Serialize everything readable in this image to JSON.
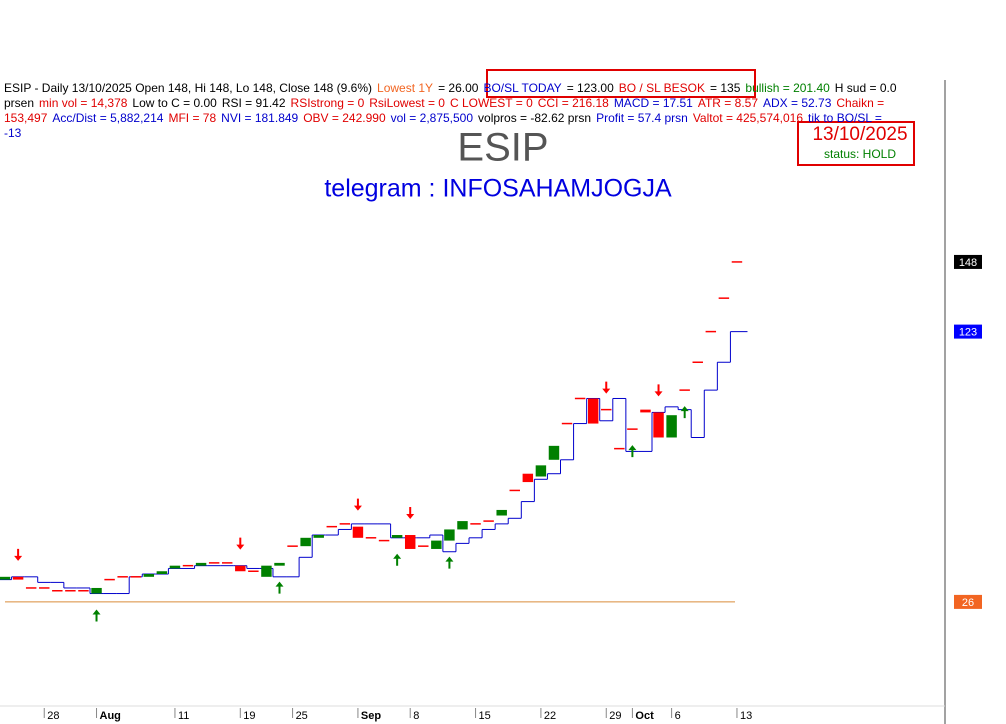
{
  "chart_data": {
    "type": "candlestick",
    "title": "ESIP",
    "subtitle": "telegram : INFOSAHAMJOGJA",
    "header": [
      [
        {
          "text": "ESIP - Daily 13/10/2025 Open 148, Hi 148, Lo 148, Close 148 (9.6%)",
          "color": "#000000"
        },
        {
          "text": "Lowest 1Y",
          "color": "#f26522"
        },
        {
          "text": "= 26.00",
          "color": "#000000"
        },
        {
          "text": "BO/SL TODAY",
          "color": "#0000cc"
        },
        {
          "text": "= 123.00",
          "color": "#000000"
        },
        {
          "text": "BO / SL BESOK",
          "color": "#e00000"
        },
        {
          "text": "= 135",
          "color": "#000000"
        },
        {
          "text": "bullish = 201.40",
          "color": "#008000"
        },
        {
          "text": "H sud = 0.0",
          "color": "#000000"
        }
      ],
      [
        {
          "text": "prsen",
          "color": "#000000"
        },
        {
          "text": "min vol = 14,378",
          "color": "#e00000"
        },
        {
          "text": "Low to C = 0.00",
          "color": "#000000"
        },
        {
          "text": "RSI = 91.42",
          "color": "#000000"
        },
        {
          "text": "RSIstrong = 0",
          "color": "#e00000"
        },
        {
          "text": "RsiLowest = 0",
          "color": "#e00000"
        },
        {
          "text": "C LOWEST = 0",
          "color": "#e00000"
        },
        {
          "text": "CCI = 216.18",
          "color": "#e00000"
        },
        {
          "text": "MACD = 17.51",
          "color": "#0000cc"
        },
        {
          "text": "ATR = 8.57",
          "color": "#e00000"
        },
        {
          "text": "ADX = 52.73",
          "color": "#0000cc"
        },
        {
          "text": "Chaikn =",
          "color": "#e00000"
        }
      ],
      [
        {
          "text": "153,497",
          "color": "#e00000"
        },
        {
          "text": "Acc/Dist = 5,882,214",
          "color": "#0000cc"
        },
        {
          "text": "MFI = 78",
          "color": "#e00000"
        },
        {
          "text": "NVI = 181.849",
          "color": "#0000cc"
        },
        {
          "text": "OBV = 242.990",
          "color": "#e00000"
        },
        {
          "text": "vol = 2,875,500",
          "color": "#0000cc"
        },
        {
          "text": "volpros = -82.62 prsn",
          "color": "#000000"
        },
        {
          "text": "Profit = 57.4 prsn",
          "color": "#0000cc"
        },
        {
          "text": "Valtot = 425,574,016",
          "color": "#e00000"
        },
        {
          "text": "tik to BO/SL =",
          "color": "#0000cc"
        }
      ],
      [
        {
          "text": "-13",
          "color": "#0000cc"
        }
      ]
    ],
    "date_box": {
      "date": "13/10/2025",
      "status": "status: HOLD"
    },
    "categories": [
      null,
      null,
      null,
      "28",
      null,
      null,
      null,
      "Aug",
      null,
      null,
      null,
      null,
      null,
      "11",
      null,
      null,
      null,
      null,
      "19",
      null,
      null,
      null,
      "25",
      null,
      null,
      null,
      null,
      "Sep",
      null,
      null,
      null,
      "8",
      null,
      null,
      null,
      null,
      "15",
      null,
      null,
      null,
      null,
      "22",
      null,
      null,
      null,
      null,
      "29",
      null,
      "Oct",
      null,
      null,
      "6",
      null,
      null,
      null,
      null,
      "13"
    ],
    "open": [
      34,
      35,
      31,
      31,
      30,
      30,
      30,
      29,
      34,
      35,
      35,
      35,
      36,
      38,
      39,
      39,
      40,
      40,
      39,
      37,
      35,
      39,
      46,
      46,
      49,
      53,
      54,
      53,
      49,
      48,
      49,
      50,
      46,
      45,
      48,
      52,
      54,
      55,
      57,
      66,
      72,
      71,
      77,
      90,
      99,
      99,
      95,
      81,
      88,
      95,
      94,
      85,
      102,
      112,
      123,
      135,
      148
    ],
    "close": [
      35,
      34,
      31,
      31,
      30,
      30,
      30,
      31,
      34,
      35,
      35,
      36,
      37,
      39,
      39,
      40,
      40,
      40,
      37,
      37,
      39,
      40,
      46,
      49,
      50,
      53,
      54,
      49,
      49,
      48,
      50,
      45,
      46,
      48,
      52,
      55,
      54,
      55,
      59,
      66,
      69,
      75,
      82,
      90,
      99,
      90,
      95,
      81,
      88,
      94,
      85,
      93,
      102,
      112,
      123,
      135,
      148
    ],
    "up_color": "#008000",
    "down_color": "#ff0000",
    "stop_line": {
      "color": "#0000cc",
      "values": [
        34,
        35,
        35,
        33,
        33,
        31,
        31,
        29,
        29,
        29,
        35,
        36,
        36,
        38,
        38,
        39,
        39,
        39,
        39,
        38,
        38,
        35,
        35,
        42,
        50,
        50,
        52,
        54,
        54,
        54,
        49,
        49,
        49,
        50,
        44,
        47,
        49,
        52,
        54,
        56,
        62,
        70,
        72,
        77,
        90,
        99,
        91,
        99,
        80,
        80,
        94,
        96,
        95,
        85,
        102,
        112,
        123
      ]
    },
    "sell_signals": [
      1,
      18,
      27,
      31,
      46,
      50
    ],
    "buy_signals": [
      7,
      21,
      30,
      34,
      48,
      52
    ],
    "price_labels": [
      {
        "value": 148,
        "color": "#000000"
      },
      {
        "value": 123,
        "color": "#0000ff"
      },
      {
        "value": 26,
        "color": "#f26522"
      }
    ],
    "lowest_line_color": "#d98c3a",
    "ylim": [
      -11,
      242
    ]
  }
}
